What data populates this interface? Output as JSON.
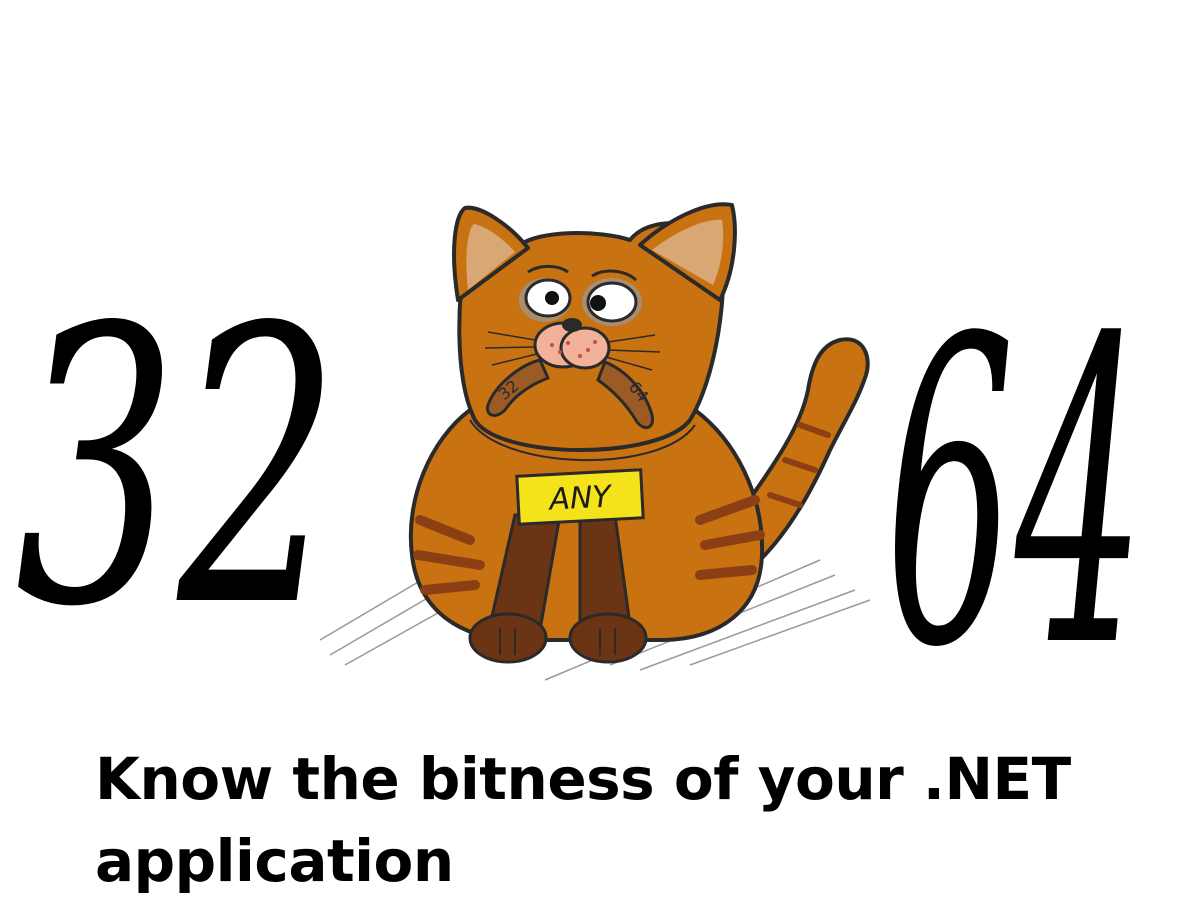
{
  "numbers": {
    "left": "32",
    "right": "64"
  },
  "badge": {
    "label": "ANY",
    "color": "#f4e21a"
  },
  "sausage_labels": {
    "left": "32",
    "right": "64"
  },
  "headline": {
    "line1": "Know the bitness of your .NET",
    "line2": "application"
  },
  "colors": {
    "cat_fur": "#c87212",
    "cat_stripes": "#8c3f14",
    "cat_legs": "#6b3414",
    "ink": "#000000"
  },
  "icons": [
    "cat-illustration",
    "sausage-icon"
  ]
}
